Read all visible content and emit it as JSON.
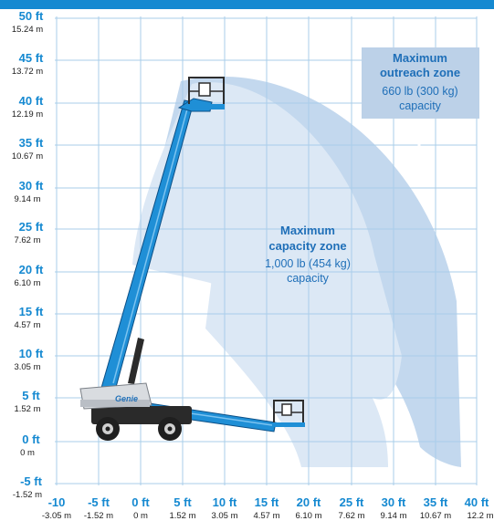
{
  "chart_data": {
    "type": "reach-diagram",
    "x_ticks": [
      {
        "ft": "-10",
        "m": "-3.05 m"
      },
      {
        "ft": "-5 ft",
        "m": "-1.52 m"
      },
      {
        "ft": "0 ft",
        "m": "0 m"
      },
      {
        "ft": "5 ft",
        "m": "1.52 m"
      },
      {
        "ft": "10 ft",
        "m": "3.05 m"
      },
      {
        "ft": "15 ft",
        "m": "4.57 m"
      },
      {
        "ft": "20 ft",
        "m": "6.10 m"
      },
      {
        "ft": "25 ft",
        "m": "7.62 m"
      },
      {
        "ft": "30 ft",
        "m": "9.14 m"
      },
      {
        "ft": "35 ft",
        "m": "10.67 m"
      },
      {
        "ft": "40 ft",
        "m": "12.2 m"
      }
    ],
    "y_ticks": [
      {
        "ft": "50 ft",
        "m": "15.24 m"
      },
      {
        "ft": "45 ft",
        "m": "13.72 m"
      },
      {
        "ft": "40 ft",
        "m": "12.19 m"
      },
      {
        "ft": "35 ft",
        "m": "10.67 m"
      },
      {
        "ft": "30 ft",
        "m": "9.14 m"
      },
      {
        "ft": "25 ft",
        "m": "7.62 m"
      },
      {
        "ft": "20 ft",
        "m": "6.10 m"
      },
      {
        "ft": "15 ft",
        "m": "4.57 m"
      },
      {
        "ft": "10 ft",
        "m": "3.05 m"
      },
      {
        "ft": "5 ft",
        "m": "1.52 m"
      },
      {
        "ft": "0 ft",
        "m": "0 m"
      },
      {
        "ft": "-5 ft",
        "m": "-1.52 m"
      }
    ],
    "zones": {
      "outreach": {
        "title_line1": "Maximum",
        "title_line2": "outreach zone",
        "load": "660 lb (300 kg)",
        "caption": "capacity"
      },
      "capacity": {
        "title_line1": "Maximum",
        "title_line2": "capacity zone",
        "load": "1,000 lb (454 kg)",
        "caption": "capacity"
      }
    },
    "brand": "Genie",
    "colors": {
      "accent": "#1589d1",
      "grid": "#a9cdea",
      "zone_outer": "#c3d8ee",
      "zone_inner": "#dce8f5",
      "label_box": "#bcd1e8",
      "zone_text": "#1f6fb8",
      "machine_blue": "#1f8fd6"
    }
  }
}
